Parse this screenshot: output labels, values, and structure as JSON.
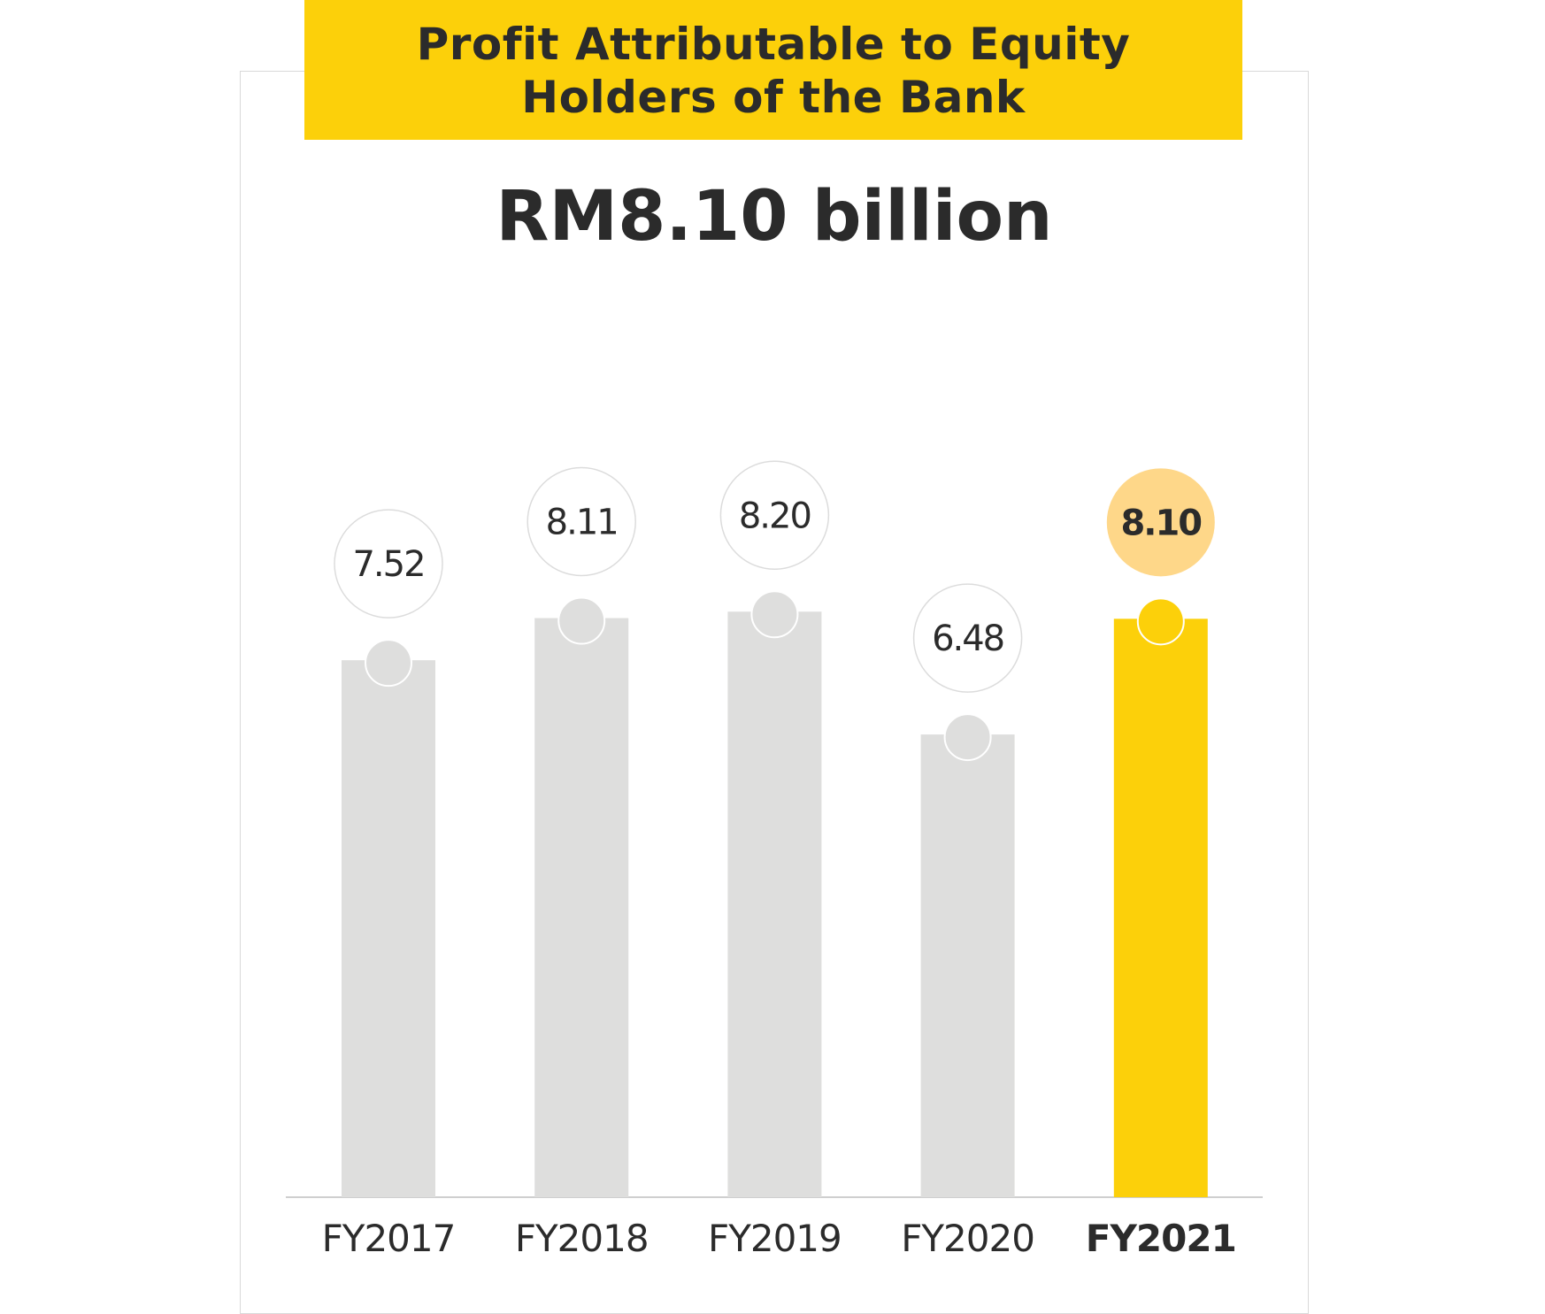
{
  "title": "Profit Attributable to Equity Holders of the Bank",
  "headline": "RM8.10 billion",
  "colors": {
    "banner": "#fcd00a",
    "bar_default": "#dededd",
    "bar_highlight": "#fcd00a",
    "bubble_highlight": "#fed789",
    "text": "#2b2b2b"
  },
  "chart_data": {
    "type": "bar",
    "title": "Profit Attributable to Equity Holders of the Bank",
    "subtitle": "RM8.10 billion",
    "categories": [
      "FY2017",
      "FY2018",
      "FY2019",
      "FY2020",
      "FY2021"
    ],
    "series": [
      {
        "values": [
          7.52,
          8.11,
          8.2,
          6.48,
          8.1
        ],
        "labels": [
          "7.52",
          "8.11",
          "8.20",
          "6.48",
          "8.10"
        ]
      }
    ],
    "highlight_index": 4,
    "xlabel": "",
    "ylabel": "",
    "grid": false
  }
}
